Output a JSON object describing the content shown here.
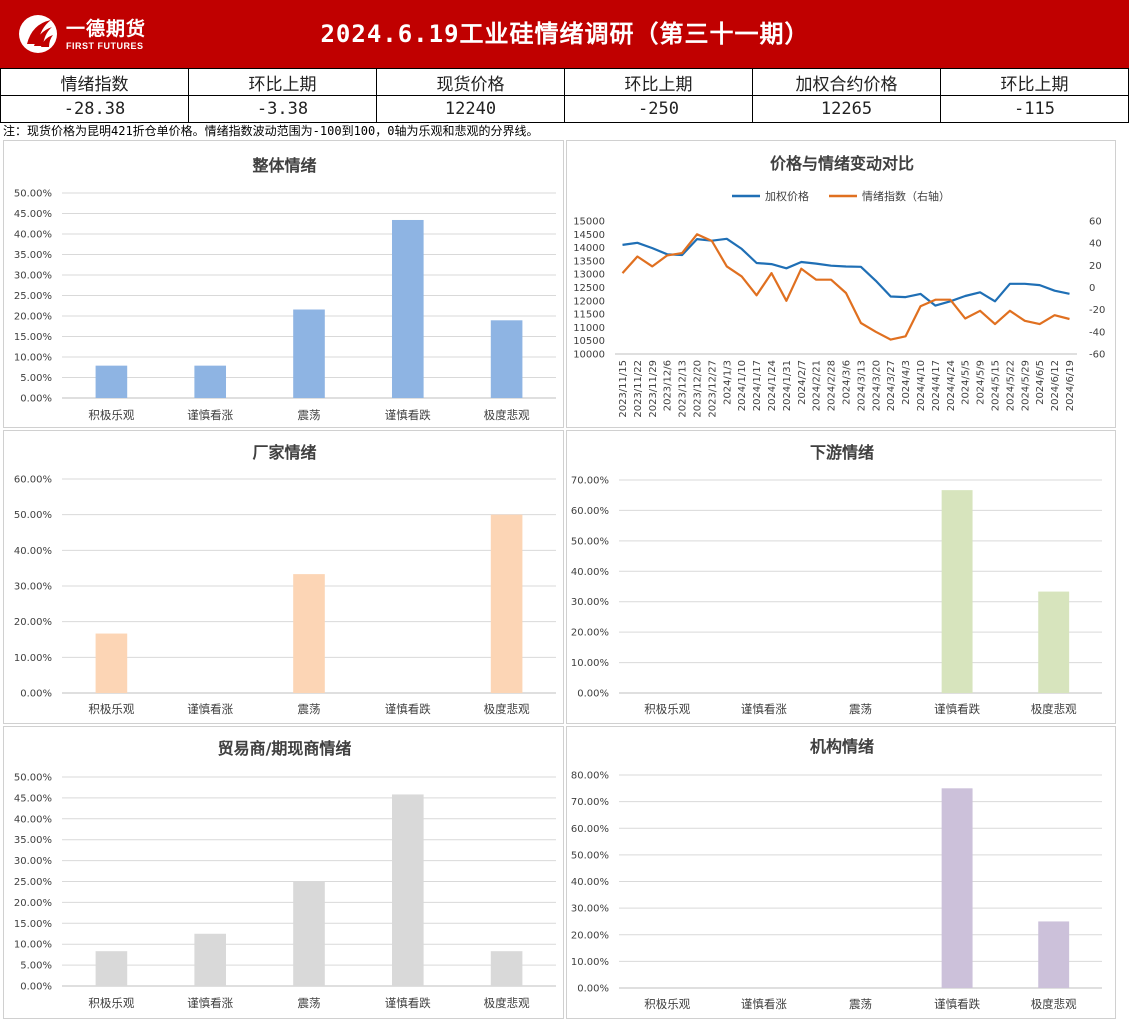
{
  "header": {
    "logo_main": "一德期货",
    "logo_sub": "FIRST FUTURES",
    "title": "2024.6.19工业硅情绪调研（第三十一期）",
    "color": "#c00000"
  },
  "summary": {
    "headers": [
      "情绪指数",
      "环比上期",
      "现货价格",
      "环比上期",
      "加权合约价格",
      "环比上期"
    ],
    "values": [
      "-28.38",
      "-3.38",
      "12240",
      "-250",
      "12265",
      "-115"
    ]
  },
  "note": "注：现货价格为昆明421折仓单价格。情绪指数波动范围为-100到100，0轴为乐观和悲观的分界线。",
  "chart_data": [
    {
      "id": "overall",
      "type": "bar",
      "title": "整体情绪",
      "categories": [
        "积极乐观",
        "谨慎看涨",
        "震荡",
        "谨慎看跌",
        "极度悲观"
      ],
      "values": [
        0.0789,
        0.0789,
        0.2158,
        0.4342,
        0.1895
      ],
      "ylim": [
        0,
        0.5
      ],
      "yticks": [
        "0.00%",
        "5.00%",
        "10.00%",
        "15.00%",
        "20.00%",
        "25.00%",
        "30.00%",
        "35.00%",
        "40.00%",
        "45.00%",
        "50.00%"
      ],
      "color": "#8eb4e3",
      "grid": true
    },
    {
      "id": "price_vs_sentiment",
      "type": "line",
      "title": "价格与情绪变动对比",
      "x": [
        "2023/11/15",
        "2023/11/22",
        "2023/11/29",
        "2023/12/6",
        "2023/12/13",
        "2023/12/20",
        "2023/12/27",
        "2024/1/3",
        "2024/1/10",
        "2024/1/17",
        "2024/1/24",
        "2024/1/31",
        "2024/2/7",
        "2024/2/21",
        "2024/2/28",
        "2024/3/6",
        "2024/3/13",
        "2024/3/20",
        "2024/3/27",
        "2024/4/3",
        "2024/4/10",
        "2024/4/17",
        "2024/4/24",
        "2024/5/5",
        "2024/5/9",
        "2024/5/15",
        "2024/5/22",
        "2024/5/29",
        "2024/6/5",
        "2024/6/12",
        "2024/6/19"
      ],
      "series": [
        {
          "name": "加权价格",
          "axis": "left",
          "color": "#1f6fb5",
          "values": [
            14100,
            14180,
            13980,
            13750,
            13720,
            14320,
            14260,
            14330,
            13950,
            13420,
            13380,
            13220,
            13460,
            13400,
            13320,
            13290,
            13280,
            12750,
            12160,
            12140,
            12260,
            11820,
            11980,
            12180,
            12320,
            11980,
            12640,
            12640,
            12590,
            12380,
            12265
          ]
        },
        {
          "name": "情绪指数（右轴）",
          "axis": "right",
          "color": "#e07020",
          "values": [
            13,
            28,
            19,
            29,
            31,
            48,
            42,
            19,
            10,
            -7,
            13,
            -12,
            17,
            7,
            7,
            -5,
            -32,
            -40,
            -47,
            -44,
            -17,
            -11,
            -11,
            -28,
            -21,
            -33,
            -21,
            -30,
            -33,
            -25,
            -28.38
          ]
        }
      ],
      "ylim_left": [
        10000,
        15000
      ],
      "yticks_left": [
        "10000",
        "10500",
        "11000",
        "11500",
        "12000",
        "12500",
        "13000",
        "13500",
        "14000",
        "14500",
        "15000"
      ],
      "ylim_right": [
        -60,
        60
      ],
      "yticks_right": [
        "-60",
        "-40",
        "-20",
        "0",
        "20",
        "40",
        "60"
      ],
      "legend": "top",
      "grid": false
    },
    {
      "id": "producers",
      "type": "bar",
      "title": "厂家情绪",
      "categories": [
        "积极乐观",
        "谨慎看涨",
        "震荡",
        "谨慎看跌",
        "极度悲观"
      ],
      "values": [
        0.1667,
        0,
        0.3333,
        0,
        0.5
      ],
      "ylim": [
        0,
        0.6
      ],
      "yticks": [
        "0.00%",
        "10.00%",
        "20.00%",
        "30.00%",
        "40.00%",
        "50.00%",
        "60.00%"
      ],
      "color": "#fcd5b5",
      "grid": true
    },
    {
      "id": "downstream",
      "type": "bar",
      "title": "下游情绪",
      "categories": [
        "积极乐观",
        "谨慎看涨",
        "震荡",
        "谨慎看跌",
        "极度悲观"
      ],
      "values": [
        0,
        0,
        0,
        0.6667,
        0.3333
      ],
      "ylim": [
        0,
        0.7
      ],
      "yticks": [
        "0.00%",
        "10.00%",
        "20.00%",
        "30.00%",
        "40.00%",
        "50.00%",
        "60.00%",
        "70.00%"
      ],
      "color": "#d7e4bd",
      "grid": true
    },
    {
      "id": "traders",
      "type": "bar",
      "title": "贸易商/期现商情绪",
      "categories": [
        "积极乐观",
        "谨慎看涨",
        "震荡",
        "谨慎看跌",
        "极度悲观"
      ],
      "values": [
        0.0833,
        0.125,
        0.25,
        0.4583,
        0.0833
      ],
      "ylim": [
        0,
        0.5
      ],
      "yticks": [
        "0.00%",
        "5.00%",
        "10.00%",
        "15.00%",
        "20.00%",
        "25.00%",
        "30.00%",
        "35.00%",
        "40.00%",
        "45.00%",
        "50.00%"
      ],
      "color": "#d9d9d9",
      "grid": true
    },
    {
      "id": "institutions",
      "type": "bar",
      "title": "机构情绪",
      "categories": [
        "积极乐观",
        "谨慎看涨",
        "震荡",
        "谨慎看跌",
        "极度悲观"
      ],
      "values": [
        0,
        0,
        0,
        0.75,
        0.25
      ],
      "ylim": [
        0,
        0.8
      ],
      "yticks": [
        "0.00%",
        "10.00%",
        "20.00%",
        "30.00%",
        "40.00%",
        "50.00%",
        "60.00%",
        "70.00%",
        "80.00%"
      ],
      "color": "#ccc1da",
      "grid": true
    }
  ]
}
